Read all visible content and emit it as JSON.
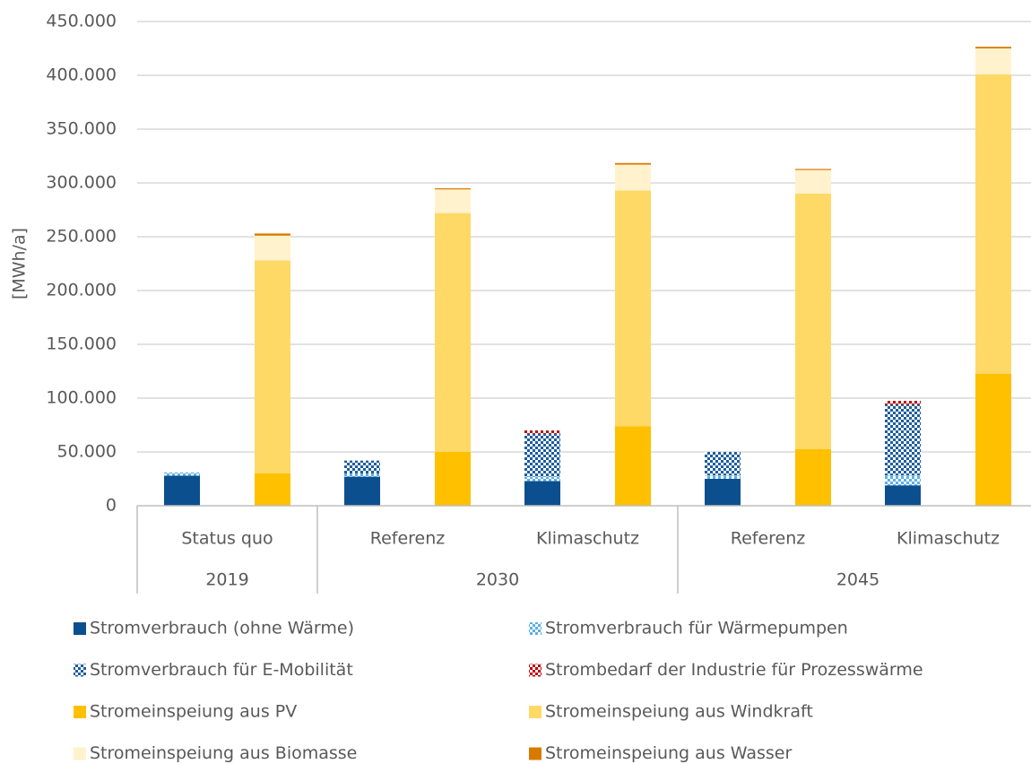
{
  "chart_data": {
    "type": "bar",
    "stacked": true,
    "y_label": "[MWh/a]",
    "categories": [
      "Status quo",
      "Referenz",
      "Klimaschutz",
      "Referenz",
      "Klimaschutz"
    ],
    "groups": [
      {
        "label": "2019",
        "count": 1
      },
      {
        "label": "2030",
        "count": 2
      },
      {
        "label": "2045",
        "count": 2
      }
    ],
    "ylim": [
      0,
      450000
    ],
    "yticks": [
      0,
      {
        "value": 50000,
        "label": "50.000"
      },
      {
        "value": 100000,
        "label": "100.000"
      },
      {
        "value": 150000,
        "label": "150.000"
      },
      {
        "value": 200000,
        "label": "200.000"
      },
      {
        "value": 250000,
        "label": "250.000"
      },
      {
        "value": 300000,
        "label": "300.000"
      },
      {
        "value": 350000,
        "label": "350.000"
      },
      {
        "value": 400000,
        "label": "400.000"
      },
      {
        "value": 450000,
        "label": "450.000"
      }
    ],
    "grid": true,
    "legend": "bottom",
    "series": [
      {
        "name": "Stromverbrauch (ohne Wärme)",
        "color": "#0b4f8f",
        "stack": 0,
        "values": [
          28000,
          27000,
          23000,
          25000,
          19000
        ]
      },
      {
        "name": "Stromverbrauch für Wärmepumpen",
        "color": "#5ab0e6",
        "pattern": "dots",
        "stack": 0,
        "values": [
          3000,
          3000,
          4000,
          3000,
          9000
        ]
      },
      {
        "name": "Stromverbrauch für E-Mobilität",
        "color": "#1d5c9e",
        "pattern": "checker",
        "stack": 0,
        "values": [
          0,
          12000,
          40000,
          22000,
          66000
        ]
      },
      {
        "name": "Strombedarf der Industrie für Prozesswärme",
        "color": "#c00000",
        "pattern": "checker",
        "stack": 0,
        "values": [
          0,
          0,
          3000,
          0,
          3500
        ]
      },
      {
        "name": "Stromeinspeiung aus PV",
        "color": "#ffc000",
        "stack": 1,
        "values": [
          30000,
          50000,
          74000,
          52500,
          122500
        ]
      },
      {
        "name": "Stromeinspeiung aus Windkraft",
        "color": "#ffd966",
        "stack": 1,
        "values": [
          198000,
          222000,
          219000,
          237500,
          278500
        ]
      },
      {
        "name": "Stromeinspeiung aus Biomasse",
        "color": "#fff2cc",
        "stack": 1,
        "values": [
          23000,
          22000,
          24000,
          22000,
          24000
        ]
      },
      {
        "name": "Stromeinspeiung aus Wasser",
        "color": "#d97a00",
        "stack": 1,
        "values": [
          2000,
          1000,
          1500,
          1000,
          1500
        ]
      }
    ]
  }
}
